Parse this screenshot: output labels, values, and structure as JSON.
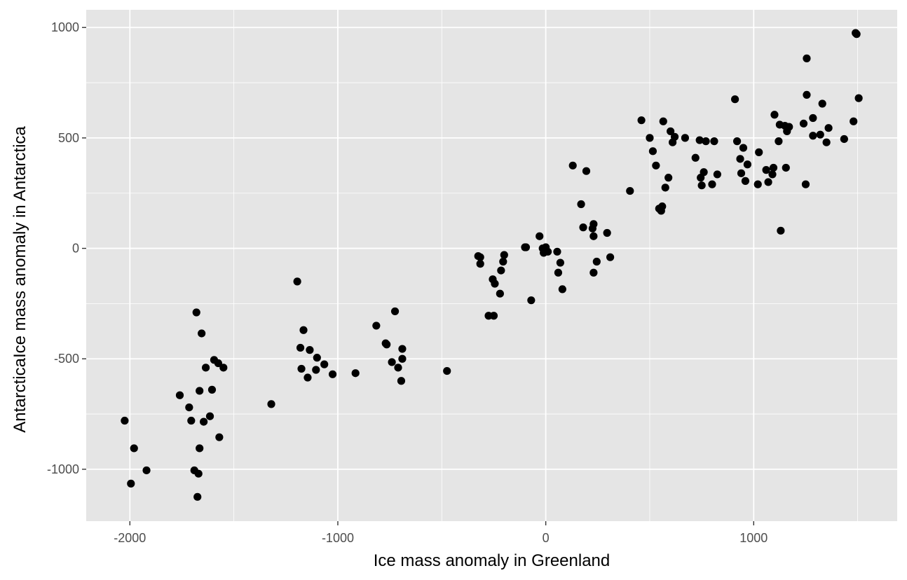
{
  "chart_data": {
    "type": "scatter",
    "title": "",
    "xlabel": "Ice mass anomaly in Greenland",
    "ylabel": "AntarcticaIce mass anomaly in Antarctica",
    "xlim": [
      -2210,
      1690
    ],
    "ylim": [
      -1235,
      1080
    ],
    "xticks": [
      -2000,
      -1000,
      0,
      1000
    ],
    "xtick_labels": [
      "-2000",
      "-1000",
      "0",
      "1000"
    ],
    "yticks": [
      -1000,
      -500,
      0,
      500,
      1000
    ],
    "ytick_labels": [
      "-1000",
      "-500",
      "0",
      "500",
      "1000"
    ],
    "grid": true,
    "legend": "none",
    "colors": {
      "panel": "#e5e5e5",
      "grid": "#ffffff",
      "point": "#000000",
      "tick": "#4d4d4d",
      "text": "#000000"
    },
    "points": [
      {
        "x": -2025,
        "y": -780
      },
      {
        "x": -1995,
        "y": -1065
      },
      {
        "x": -1980,
        "y": -905
      },
      {
        "x": -1920,
        "y": -1005
      },
      {
        "x": -1760,
        "y": -665
      },
      {
        "x": -1715,
        "y": -720
      },
      {
        "x": -1705,
        "y": -780
      },
      {
        "x": -1690,
        "y": -1005
      },
      {
        "x": -1675,
        "y": -1125
      },
      {
        "x": -1670,
        "y": -1020
      },
      {
        "x": -1665,
        "y": -905
      },
      {
        "x": -1665,
        "y": -645
      },
      {
        "x": -1680,
        "y": -290
      },
      {
        "x": -1655,
        "y": -385
      },
      {
        "x": -1645,
        "y": -785
      },
      {
        "x": -1635,
        "y": -540
      },
      {
        "x": -1615,
        "y": -760
      },
      {
        "x": -1605,
        "y": -640
      },
      {
        "x": -1595,
        "y": -505
      },
      {
        "x": -1575,
        "y": -520
      },
      {
        "x": -1570,
        "y": -855
      },
      {
        "x": -1550,
        "y": -540
      },
      {
        "x": -1320,
        "y": -705
      },
      {
        "x": -1195,
        "y": -150
      },
      {
        "x": -1180,
        "y": -450
      },
      {
        "x": -1175,
        "y": -545
      },
      {
        "x": -1165,
        "y": -370
      },
      {
        "x": -1145,
        "y": -585
      },
      {
        "x": -1135,
        "y": -460
      },
      {
        "x": -1105,
        "y": -550
      },
      {
        "x": -1100,
        "y": -495
      },
      {
        "x": -1065,
        "y": -525
      },
      {
        "x": -1025,
        "y": -570
      },
      {
        "x": -915,
        "y": -565
      },
      {
        "x": -815,
        "y": -350
      },
      {
        "x": -770,
        "y": -430
      },
      {
        "x": -765,
        "y": -435
      },
      {
        "x": -740,
        "y": -515
      },
      {
        "x": -725,
        "y": -285
      },
      {
        "x": -710,
        "y": -540
      },
      {
        "x": -695,
        "y": -600
      },
      {
        "x": -690,
        "y": -500
      },
      {
        "x": -690,
        "y": -455
      },
      {
        "x": -475,
        "y": -555
      },
      {
        "x": -325,
        "y": -35
      },
      {
        "x": -315,
        "y": -40
      },
      {
        "x": -315,
        "y": -70
      },
      {
        "x": -275,
        "y": -305
      },
      {
        "x": -255,
        "y": -140
      },
      {
        "x": -250,
        "y": -305
      },
      {
        "x": -245,
        "y": -160
      },
      {
        "x": -220,
        "y": -205
      },
      {
        "x": -215,
        "y": -100
      },
      {
        "x": -205,
        "y": -60
      },
      {
        "x": -200,
        "y": -30
      },
      {
        "x": -100,
        "y": 5
      },
      {
        "x": -95,
        "y": 5
      },
      {
        "x": -70,
        "y": -235
      },
      {
        "x": -30,
        "y": 55
      },
      {
        "x": -15,
        "y": 0
      },
      {
        "x": -10,
        "y": -20
      },
      {
        "x": 0,
        "y": 5
      },
      {
        "x": 10,
        "y": -15
      },
      {
        "x": 55,
        "y": -15
      },
      {
        "x": 60,
        "y": -110
      },
      {
        "x": 70,
        "y": -65
      },
      {
        "x": 80,
        "y": -185
      },
      {
        "x": 130,
        "y": 375
      },
      {
        "x": 170,
        "y": 200
      },
      {
        "x": 180,
        "y": 95
      },
      {
        "x": 195,
        "y": 350
      },
      {
        "x": 225,
        "y": 90
      },
      {
        "x": 230,
        "y": 110
      },
      {
        "x": 230,
        "y": 55
      },
      {
        "x": 230,
        "y": -110
      },
      {
        "x": 245,
        "y": -60
      },
      {
        "x": 295,
        "y": 70
      },
      {
        "x": 310,
        "y": -40
      },
      {
        "x": 405,
        "y": 260
      },
      {
        "x": 460,
        "y": 580
      },
      {
        "x": 500,
        "y": 500
      },
      {
        "x": 515,
        "y": 440
      },
      {
        "x": 530,
        "y": 375
      },
      {
        "x": 545,
        "y": 180
      },
      {
        "x": 555,
        "y": 170
      },
      {
        "x": 560,
        "y": 190
      },
      {
        "x": 565,
        "y": 575
      },
      {
        "x": 575,
        "y": 275
      },
      {
        "x": 590,
        "y": 320
      },
      {
        "x": 600,
        "y": 530
      },
      {
        "x": 610,
        "y": 480
      },
      {
        "x": 620,
        "y": 505
      },
      {
        "x": 670,
        "y": 500
      },
      {
        "x": 720,
        "y": 410
      },
      {
        "x": 740,
        "y": 490
      },
      {
        "x": 745,
        "y": 320
      },
      {
        "x": 750,
        "y": 285
      },
      {
        "x": 760,
        "y": 345
      },
      {
        "x": 770,
        "y": 485
      },
      {
        "x": 800,
        "y": 290
      },
      {
        "x": 810,
        "y": 485
      },
      {
        "x": 825,
        "y": 335
      },
      {
        "x": 910,
        "y": 675
      },
      {
        "x": 920,
        "y": 485
      },
      {
        "x": 935,
        "y": 405
      },
      {
        "x": 940,
        "y": 340
      },
      {
        "x": 950,
        "y": 455
      },
      {
        "x": 960,
        "y": 305
      },
      {
        "x": 970,
        "y": 380
      },
      {
        "x": 1020,
        "y": 290
      },
      {
        "x": 1025,
        "y": 435
      },
      {
        "x": 1060,
        "y": 355
      },
      {
        "x": 1070,
        "y": 300
      },
      {
        "x": 1090,
        "y": 335
      },
      {
        "x": 1095,
        "y": 365
      },
      {
        "x": 1100,
        "y": 605
      },
      {
        "x": 1120,
        "y": 485
      },
      {
        "x": 1125,
        "y": 560
      },
      {
        "x": 1130,
        "y": 80
      },
      {
        "x": 1150,
        "y": 555
      },
      {
        "x": 1155,
        "y": 365
      },
      {
        "x": 1160,
        "y": 530
      },
      {
        "x": 1170,
        "y": 550
      },
      {
        "x": 1250,
        "y": 290
      },
      {
        "x": 1240,
        "y": 565
      },
      {
        "x": 1255,
        "y": 860
      },
      {
        "x": 1255,
        "y": 695
      },
      {
        "x": 1285,
        "y": 590
      },
      {
        "x": 1285,
        "y": 510
      },
      {
        "x": 1320,
        "y": 515
      },
      {
        "x": 1330,
        "y": 655
      },
      {
        "x": 1350,
        "y": 480
      },
      {
        "x": 1360,
        "y": 545
      },
      {
        "x": 1435,
        "y": 495
      },
      {
        "x": 1480,
        "y": 575
      },
      {
        "x": 1490,
        "y": 975
      },
      {
        "x": 1495,
        "y": 970
      },
      {
        "x": 1505,
        "y": 680
      }
    ]
  }
}
